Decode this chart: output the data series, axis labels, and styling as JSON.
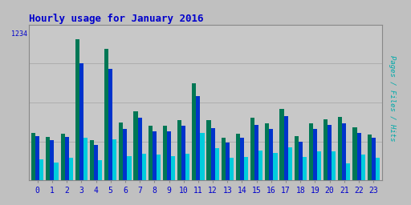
{
  "title": "Hourly usage for January 2016",
  "ylabel": "Pages / Files / Hits",
  "hours": [
    0,
    1,
    2,
    3,
    4,
    5,
    6,
    7,
    8,
    9,
    10,
    11,
    12,
    13,
    14,
    15,
    16,
    17,
    18,
    19,
    20,
    21,
    22,
    23
  ],
  "pages": [
    430,
    390,
    420,
    1270,
    360,
    1180,
    520,
    620,
    490,
    490,
    540,
    870,
    540,
    380,
    420,
    560,
    510,
    640,
    400,
    510,
    550,
    570,
    480,
    410
  ],
  "hits": [
    400,
    360,
    390,
    1050,
    320,
    1000,
    460,
    560,
    440,
    440,
    490,
    760,
    470,
    340,
    380,
    500,
    460,
    580,
    350,
    460,
    500,
    510,
    430,
    380
  ],
  "files": [
    190,
    160,
    200,
    380,
    180,
    370,
    220,
    240,
    230,
    220,
    240,
    430,
    290,
    200,
    210,
    270,
    250,
    300,
    210,
    260,
    260,
    150,
    230,
    200
  ],
  "color_pages": "#007755",
  "color_hits": "#0033cc",
  "color_files": "#00ccdd",
  "bg_color": "#c0c0c0",
  "plot_bg": "#c8c8c8",
  "bar_width": 0.28,
  "ylim": [
    0,
    1400
  ],
  "title_color": "#0000cc",
  "ylabel_color": "#00aaaa",
  "tick_label_color": "#0000cc"
}
